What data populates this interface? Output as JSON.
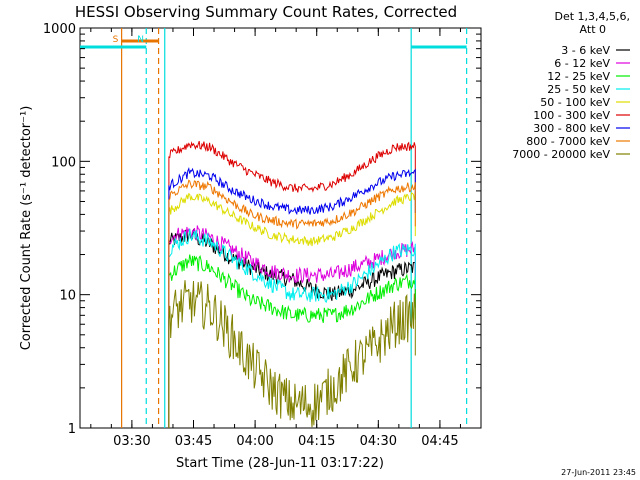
{
  "chart_data": {
    "type": "line",
    "title": "HESSI Observing Summary Count Rates, Corrected",
    "xlabel": "Start Time (28-Jun-11 03:17:22)",
    "ylabel": "Corrected Count Rate (s⁻¹ detector⁻¹)",
    "y_scale": "log",
    "ylim": [
      1,
      1000
    ],
    "xlim": [
      "03:17:22",
      "04:55:00"
    ],
    "x_ticks": [
      "03:30",
      "03:45",
      "04:00",
      "04:15",
      "04:30",
      "04:45"
    ],
    "y_ticks": [
      "1",
      "10",
      "100",
      "1000"
    ],
    "grid": false,
    "legend_position": "right-outside",
    "legend_header": [
      "Det 1,3,4,5,6,",
      "Att 0"
    ],
    "footer_date": "27-Jun-2011 23:45",
    "markers": [
      {
        "label": "S",
        "time": "03:27:30",
        "color": "#e87400"
      },
      {
        "label": "N",
        "time": "03:33:30",
        "color": "#00dddd"
      }
    ],
    "vertical_lines": [
      {
        "time": "03:27:30",
        "color": "#e87400",
        "style": "solid"
      },
      {
        "time": "03:33:30",
        "color": "#00dddd",
        "style": "dashed"
      },
      {
        "time": "03:36:30",
        "color": "#e87400",
        "style": "dashed"
      },
      {
        "time": "03:38:00",
        "color": "#00dddd",
        "style": "solid"
      },
      {
        "time": "04:38:00",
        "color": "#00dddd",
        "style": "solid"
      },
      {
        "time": "04:51:30",
        "color": "#00dddd",
        "style": "dashed"
      }
    ],
    "x_times": [
      "03:39",
      "03:44",
      "03:49",
      "03:54",
      "03:59",
      "04:04",
      "04:09",
      "04:14",
      "04:19",
      "04:24",
      "04:29",
      "04:34",
      "04:39"
    ],
    "series": [
      {
        "name": "3 - 6 keV",
        "color": "#000000",
        "values": [
          25,
          28,
          24,
          19,
          16,
          14,
          13,
          11,
          10,
          11,
          13,
          15,
          16
        ]
      },
      {
        "name": "6 - 12 keV",
        "color": "#dd00dd",
        "values": [
          27,
          30,
          27,
          22,
          18,
          15,
          14,
          14,
          14,
          16,
          18,
          21,
          22
        ]
      },
      {
        "name": "12 - 25 keV",
        "color": "#00ee00",
        "values": [
          14,
          18,
          16,
          12,
          9,
          8,
          7,
          7,
          7,
          8,
          10,
          12,
          13
        ]
      },
      {
        "name": "25 - 50 keV",
        "color": "#00eeee",
        "values": [
          22,
          28,
          25,
          19,
          15,
          12,
          10,
          10,
          10,
          12,
          16,
          21,
          22
        ]
      },
      {
        "name": "50 - 100 keV",
        "color": "#dddd00",
        "values": [
          42,
          55,
          50,
          40,
          33,
          28,
          26,
          25,
          27,
          32,
          40,
          50,
          55
        ]
      },
      {
        "name": "100 - 300 keV",
        "color": "#dd0000",
        "values": [
          110,
          135,
          128,
          100,
          82,
          70,
          63,
          62,
          68,
          82,
          105,
          128,
          130
        ]
      },
      {
        "name": "300 - 800 keV",
        "color": "#0000ee",
        "values": [
          65,
          82,
          78,
          62,
          52,
          46,
          43,
          43,
          46,
          55,
          67,
          78,
          82
        ]
      },
      {
        "name": "800 - 7000 keV",
        "color": "#ee7700",
        "values": [
          55,
          68,
          64,
          50,
          40,
          36,
          34,
          34,
          36,
          42,
          52,
          62,
          65
        ]
      },
      {
        "name": "7000 - 20000 keV",
        "color": "#808000",
        "values": [
          7,
          9,
          8,
          5,
          3,
          2,
          1.5,
          1.5,
          2,
          3,
          4,
          6,
          7
        ]
      }
    ]
  }
}
